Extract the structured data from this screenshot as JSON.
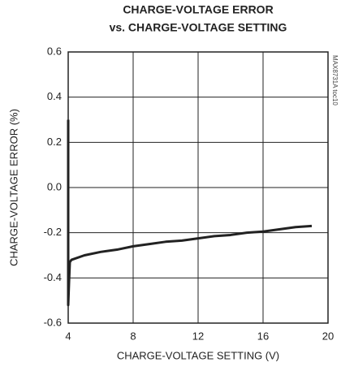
{
  "chart_data": {
    "type": "line",
    "title": "CHARGE-VOLTAGE ERROR",
    "subtitle": "vs. CHARGE-VOLTAGE SETTING",
    "x_label": "CHARGE-VOLTAGE SETTING (V)",
    "y_label": "CHARGE-VOLTAGE ERROR (%)",
    "annotation": "MAX8731A toc10",
    "x": [
      4.0,
      4.0,
      4.05,
      4.1,
      4.2,
      5,
      6,
      7,
      8,
      9,
      10,
      11,
      12,
      13,
      14,
      15,
      16,
      17,
      18,
      19
    ],
    "values": [
      0.3,
      -0.52,
      -0.42,
      -0.33,
      -0.32,
      -0.3,
      -0.285,
      -0.275,
      -0.26,
      -0.25,
      -0.24,
      -0.235,
      -0.225,
      -0.215,
      -0.21,
      -0.2,
      -0.195,
      -0.185,
      -0.175,
      -0.17
    ],
    "color": "#222222",
    "xlim": [
      4,
      20
    ],
    "ylim": [
      -0.6,
      0.6
    ],
    "xticks": [
      4,
      8,
      12,
      16,
      20
    ],
    "yticks": [
      -0.6,
      -0.4,
      -0.2,
      {
        "value": 0,
        "label": "0.0"
      },
      0.2,
      0.4,
      0.6
    ],
    "grid": true
  }
}
